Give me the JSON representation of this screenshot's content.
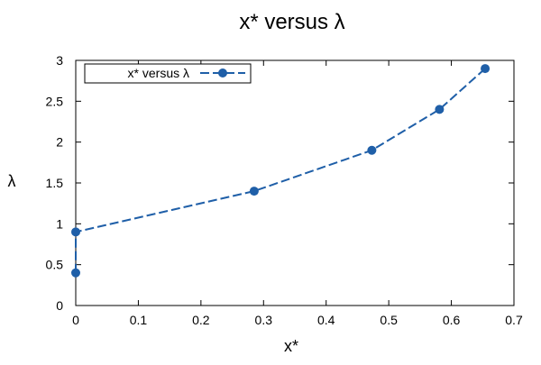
{
  "chart_data": {
    "type": "line",
    "title": "x* versus λ",
    "xlabel": "x*",
    "ylabel": "λ",
    "xlim": [
      0,
      0.7
    ],
    "ylim": [
      0,
      3
    ],
    "x_ticks": [
      "0",
      "0.1",
      "0.2",
      "0.3",
      "0.4",
      "0.5",
      "0.6",
      "0.7"
    ],
    "y_ticks": [
      "0",
      "0.5",
      "1",
      "1.5",
      "2",
      "2.5",
      "3"
    ],
    "grid": false,
    "legend_position": "top-left",
    "series": [
      {
        "name": "x* versus λ",
        "color": "#1f5fa8",
        "line_style": "dashed",
        "marker": "circle",
        "x": [
          0.0,
          0.0,
          0.285,
          0.473,
          0.581,
          0.654
        ],
        "y": [
          0.4,
          0.9,
          1.4,
          1.9,
          2.4,
          2.9
        ]
      }
    ]
  }
}
